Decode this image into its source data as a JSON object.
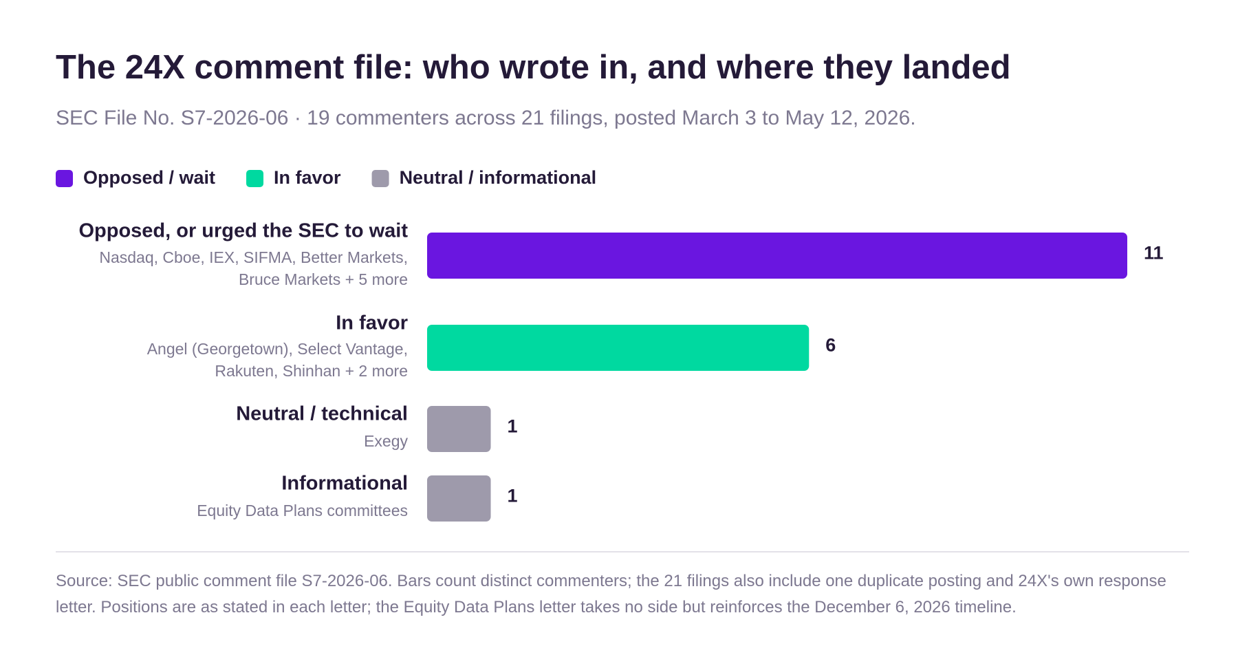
{
  "chart_data": {
    "type": "bar",
    "orientation": "horizontal",
    "title": "The 24X comment file: who wrote in, and where they landed",
    "subtitle": "SEC File No. S7-2026-06 · 19 commenters across 21 filings, posted March 3 to May 12, 2026.",
    "legend": [
      {
        "name": "Opposed / wait",
        "color": "#6a16e0"
      },
      {
        "name": "In favor",
        "color": "#00d9a0"
      },
      {
        "name": "Neutral / informational",
        "color": "#9e9aab"
      }
    ],
    "categories": [
      "Opposed, or urged the SEC to wait",
      "In favor",
      "Neutral / technical",
      "Informational"
    ],
    "details": [
      [
        "Nasdaq, Cboe, IEX, SIFMA, Better Markets,",
        "Bruce Markets + 5 more"
      ],
      [
        "Angel (Georgetown), Select Vantage,",
        "Rakuten, Shinhan + 2 more"
      ],
      [
        "Exegy"
      ],
      [
        "Equity Data Plans committees"
      ]
    ],
    "values": [
      11,
      6,
      1,
      1
    ],
    "colors": [
      "#6a16e0",
      "#00d9a0",
      "#9e9aab",
      "#9e9aab"
    ],
    "footnote": "Source: SEC public comment file S7-2026-06. Bars count distinct commenters; the 21 filings also include one duplicate posting and 24X's own response letter. Positions are as stated in each letter; the Equity Data Plans letter takes no side but reinforces the December 6, 2026 timeline."
  }
}
